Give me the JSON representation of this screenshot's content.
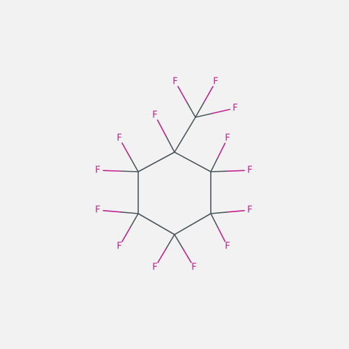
{
  "molecule": {
    "bond_color": "#48555a",
    "fluorine_color": "#c0208c",
    "background_color": "#f2f2f2",
    "atoms": [
      {
        "id": "c1",
        "element": "C",
        "label": ""
      },
      {
        "id": "c2",
        "element": "C",
        "label": ""
      },
      {
        "id": "c3",
        "element": "C",
        "label": ""
      },
      {
        "id": "c4",
        "element": "C",
        "label": ""
      },
      {
        "id": "c5",
        "element": "C",
        "label": ""
      },
      {
        "id": "c6",
        "element": "C",
        "label": ""
      },
      {
        "id": "c7",
        "element": "C",
        "label": ""
      },
      {
        "id": "f1",
        "element": "F",
        "label": "F"
      },
      {
        "id": "f2",
        "element": "F",
        "label": "F"
      },
      {
        "id": "f3",
        "element": "F",
        "label": "F"
      },
      {
        "id": "f4",
        "element": "F",
        "label": "F"
      },
      {
        "id": "f5",
        "element": "F",
        "label": "F"
      },
      {
        "id": "f6",
        "element": "F",
        "label": "F"
      },
      {
        "id": "f7",
        "element": "F",
        "label": "F"
      },
      {
        "id": "f8",
        "element": "F",
        "label": "F"
      },
      {
        "id": "f9",
        "element": "F",
        "label": "F"
      },
      {
        "id": "f10",
        "element": "F",
        "label": "F"
      },
      {
        "id": "f11",
        "element": "F",
        "label": "F"
      },
      {
        "id": "f12",
        "element": "F",
        "label": "F"
      },
      {
        "id": "f13",
        "element": "F",
        "label": "F"
      },
      {
        "id": "f14",
        "element": "F",
        "label": "F"
      }
    ],
    "bonds": [
      [
        "c1",
        "c2"
      ],
      [
        "c2",
        "c3"
      ],
      [
        "c3",
        "c4"
      ],
      [
        "c4",
        "c5"
      ],
      [
        "c5",
        "c6"
      ],
      [
        "c6",
        "c1"
      ],
      [
        "c1",
        "c7"
      ],
      [
        "c7",
        "f1"
      ],
      [
        "c7",
        "f2"
      ],
      [
        "c7",
        "f3"
      ],
      [
        "c1",
        "f4"
      ],
      [
        "c2",
        "f5"
      ],
      [
        "c2",
        "f6"
      ],
      [
        "c3",
        "f7"
      ],
      [
        "c3",
        "f8"
      ],
      [
        "c4",
        "f9"
      ],
      [
        "c4",
        "f10"
      ],
      [
        "c5",
        "f11"
      ],
      [
        "c5",
        "f12"
      ],
      [
        "c6",
        "f13"
      ],
      [
        "c6",
        "f14"
      ]
    ]
  }
}
